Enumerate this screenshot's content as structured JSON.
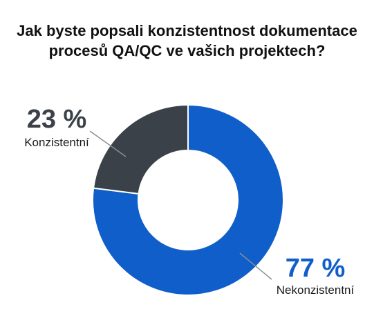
{
  "chart_data": {
    "type": "pie",
    "variant": "donut",
    "title": "Jak byste popsali konzistentnost dokumentace procesů QA/QC ve vašich projektech?",
    "slices": [
      {
        "label": "Konzistentní",
        "value": 23,
        "display": "23 %",
        "color": "#3a4149"
      },
      {
        "label": "Nekonzistentní",
        "value": 77,
        "display": "77 %",
        "color": "#0f5ec9"
      }
    ],
    "legend": "none"
  }
}
